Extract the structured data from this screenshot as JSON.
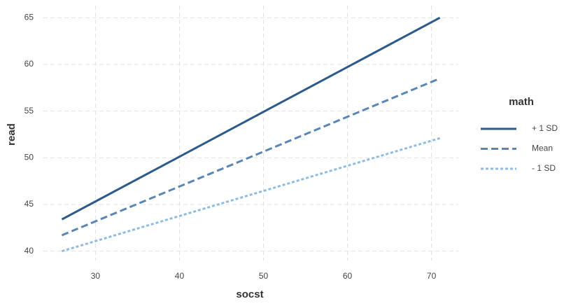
{
  "chart_data": {
    "type": "line",
    "x_label": "socst",
    "y_label": "read",
    "x": [
      26,
      71
    ],
    "series": [
      {
        "name": "+ 1 SD",
        "color": "#2c5a8a",
        "dash": "solid",
        "values": [
          43.4,
          65.0
        ]
      },
      {
        "name": "Mean",
        "color": "#5a86b6",
        "dash": "dashed",
        "values": [
          41.7,
          58.5
        ]
      },
      {
        "name": "- 1 SD",
        "color": "#8fbce0",
        "dash": "dotted",
        "values": [
          40.0,
          52.1
        ]
      }
    ],
    "legend_title": "math",
    "legend_position": "right",
    "xlim": [
      23.8,
      73.2
    ],
    "xticks": [
      30,
      40,
      50,
      60,
      70
    ],
    "ylim": [
      39.0,
      66.3
    ],
    "yticks": [
      40,
      45,
      50,
      55,
      60,
      65
    ],
    "grid": true
  }
}
